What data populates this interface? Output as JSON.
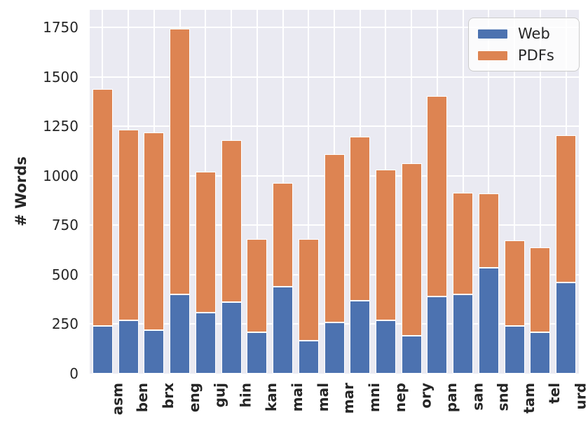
{
  "chart_data": {
    "type": "bar",
    "stacked": true,
    "title": "",
    "xlabel": "",
    "ylabel": "# Words",
    "categories": [
      "asm",
      "ben",
      "brx",
      "eng",
      "guj",
      "hin",
      "kan",
      "mai",
      "mal",
      "mar",
      "mni",
      "nep",
      "ory",
      "pan",
      "san",
      "snd",
      "tam",
      "tel",
      "urd"
    ],
    "series": [
      {
        "name": "Web",
        "color": "#4C72B0",
        "values": [
          240,
          270,
          220,
          400,
          310,
          360,
          210,
          440,
          165,
          260,
          370,
          270,
          190,
          390,
          400,
          535,
          240,
          210,
          460
        ]
      },
      {
        "name": "PDFs",
        "color": "#DD8452",
        "values": [
          1200,
          965,
          1000,
          1345,
          710,
          820,
          470,
          525,
          515,
          850,
          830,
          760,
          875,
          1015,
          515,
          375,
          435,
          430,
          745
        ]
      }
    ],
    "totals": [
      1440,
      1235,
      1220,
      1745,
      1020,
      1180,
      680,
      965,
      680,
      1110,
      1200,
      1030,
      1065,
      1405,
      915,
      910,
      675,
      640,
      1205
    ],
    "ylim": [
      0,
      1840
    ],
    "y_ticks": [
      0,
      250,
      500,
      750,
      1000,
      1250,
      1500,
      1750
    ],
    "grid": true,
    "legend_position": "upper right",
    "colors": {
      "plot_background": "#EAEAF2",
      "figure_background": "#ffffff",
      "gridline": "#ffffff",
      "text": "#262626",
      "web": "#4C72B0",
      "pdfs": "#DD8452"
    }
  }
}
